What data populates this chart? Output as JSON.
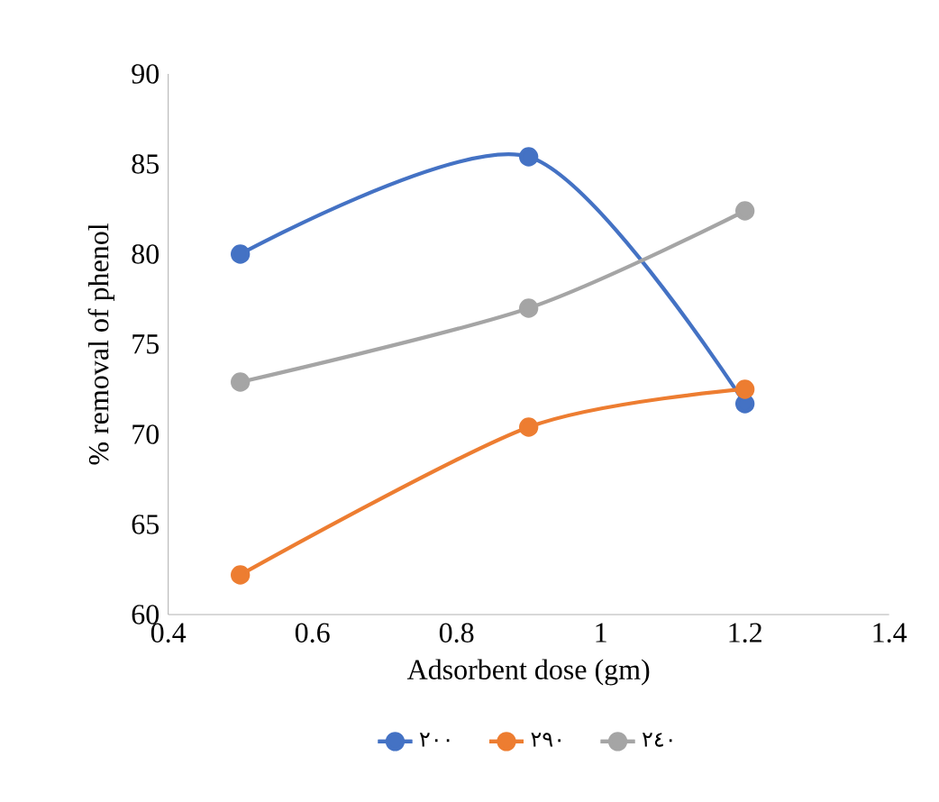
{
  "chart_data": {
    "type": "line",
    "xlabel": "Adsorbent dose (gm)",
    "ylabel": "% removal  of phenol",
    "x": [
      0.5,
      0.9,
      1.2
    ],
    "series": [
      {
        "name": "٢٠٠",
        "color": "#4472c4",
        "values": [
          80,
          85.4,
          71.7
        ]
      },
      {
        "name": "٢٩٠",
        "color": "#ed7d31",
        "values": [
          62.2,
          70.4,
          72.5
        ]
      },
      {
        "name": "٢٤٠",
        "color": "#a5a5a5",
        "values": [
          72.9,
          77,
          82.4
        ]
      }
    ],
    "xlim": [
      0.4,
      1.4
    ],
    "xticks": [
      0.4,
      0.6,
      0.8,
      1,
      1.2,
      1.4
    ],
    "ylim": [
      60,
      90
    ],
    "yticks": [
      60,
      65,
      70,
      75,
      80,
      85,
      90
    ],
    "grid": false,
    "legend": "bottom",
    "marker": "circle",
    "line_style": "solid"
  }
}
